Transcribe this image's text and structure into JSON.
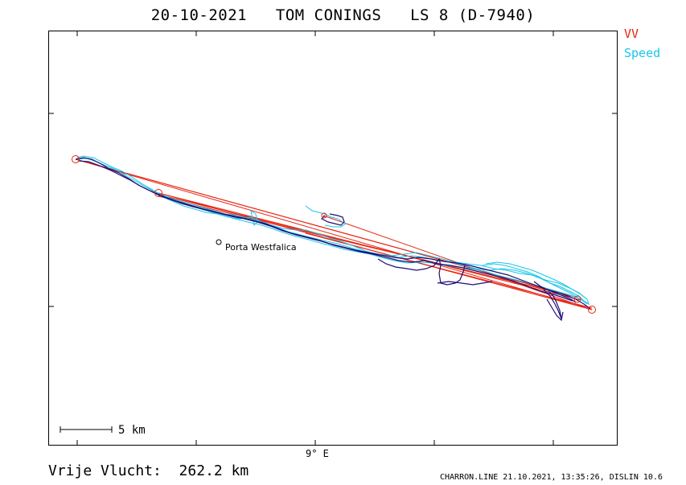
{
  "title": "20-10-2021   TOM CONINGS   LS 8 (D-7940)",
  "legend": {
    "vv": {
      "label": "VV",
      "color": "#e8220e"
    },
    "speed": {
      "label": "Speed",
      "color": "#19c6e8"
    }
  },
  "map": {
    "axis_label_x": "9° E",
    "place": {
      "name": "Porta Westfalica"
    },
    "scale_bar": {
      "label": "5  km"
    },
    "track_color_dark": "#1e0d78",
    "track_color_speed": "#19c6e8",
    "track_color_vv": "#e8220e"
  },
  "footer": {
    "distance": "Vrije Vlucht:  262.2 km",
    "credit": "CHARRON.LINE 21.10.2021, 13:35:26, DISLIN 10.6"
  }
}
